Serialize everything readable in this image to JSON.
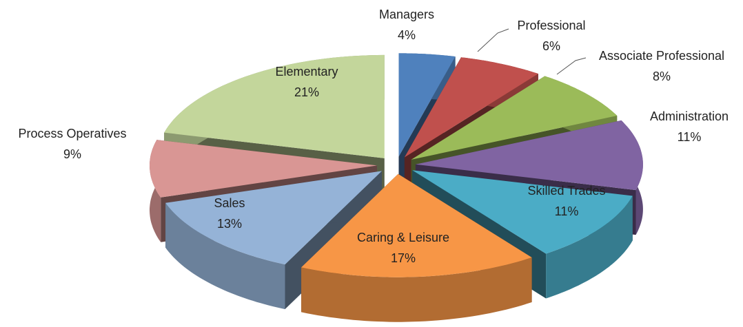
{
  "chart_data": {
    "type": "pie3d",
    "categories": [
      "Managers",
      "Professional",
      "Associate Professional",
      "Administration",
      "Skilled Trades",
      "Caring & Leisure",
      "Sales",
      "Process Operatives",
      "Elementary"
    ],
    "values": [
      4,
      6,
      8,
      11,
      11,
      17,
      13,
      9,
      21
    ],
    "value_labels": [
      "4%",
      "6%",
      "8%",
      "11%",
      "11%",
      "17%",
      "13%",
      "9%",
      "21%"
    ],
    "colors": [
      "#4f81bd",
      "#c0504d",
      "#9bbb59",
      "#8064a2",
      "#4bacc6",
      "#f79646",
      "#95b3d7",
      "#d99694",
      "#c3d69b"
    ]
  }
}
